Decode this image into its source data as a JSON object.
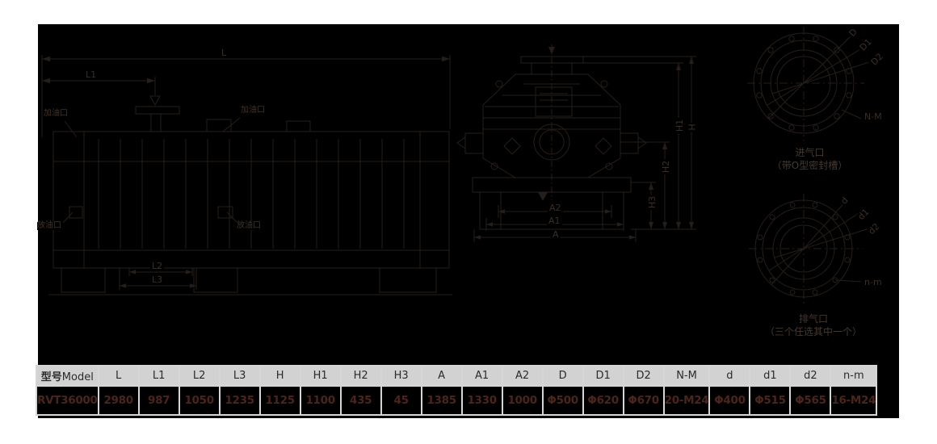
{
  "colors": {
    "page_bg": "#ffffff",
    "canvas_bg": "#000000",
    "drawing_line": "#261e1a",
    "dim_text": "#3b2e27",
    "caption_text": "#453931",
    "table_header_bg": "#d2d2d2",
    "table_header_text": "#2d2a28",
    "table_value_text": "#4a251e",
    "table_cell_bg": "#000000"
  },
  "drawing": {
    "side_view": {
      "dims": {
        "L": "L",
        "L1": "L1",
        "L2": "L2",
        "L3": "L3"
      },
      "ports": {
        "oil_fill_left": "加油口",
        "oil_fill_mid": "加油口",
        "oil_drain_left": "放油口",
        "oil_drain_mid": "放油口"
      }
    },
    "front_view": {
      "dims": {
        "H": "H",
        "H1": "H1",
        "H2": "H2",
        "H3": "H3",
        "A": "A",
        "A1": "A1",
        "A2": "A2"
      }
    },
    "inlet_flange": {
      "dims": {
        "D": "D",
        "D1": "D1",
        "D2": "D2",
        "NM": "N-M"
      },
      "caption_line1": "进气口",
      "caption_line2": "（带O型密封槽）"
    },
    "outlet_flange": {
      "dims": {
        "d": "d",
        "d1": "d1",
        "d2": "d2",
        "nm": "n-m"
      },
      "caption_line1": "排气口",
      "caption_line2": "（三个任选其中一个）"
    }
  },
  "table": {
    "model_header": {
      "cjk": "型号",
      "en": "Model"
    },
    "dim_headers": [
      "L",
      "L1",
      "L2",
      "L3",
      "H",
      "H1",
      "H2",
      "H3",
      "A",
      "A1",
      "A2",
      "D",
      "D1",
      "D2",
      "N-M",
      "d",
      "d1",
      "d2",
      "n-m"
    ],
    "rows": [
      {
        "model": "RVT36000",
        "values": [
          "2980",
          "987",
          "1050",
          "1235",
          "1125",
          "1100",
          "435",
          "45",
          "1385",
          "1330",
          "1000",
          "Φ500",
          "Φ620",
          "Φ670",
          "20-M24",
          "Φ400",
          "Φ515",
          "Φ565",
          "16-M24"
        ]
      }
    ]
  }
}
